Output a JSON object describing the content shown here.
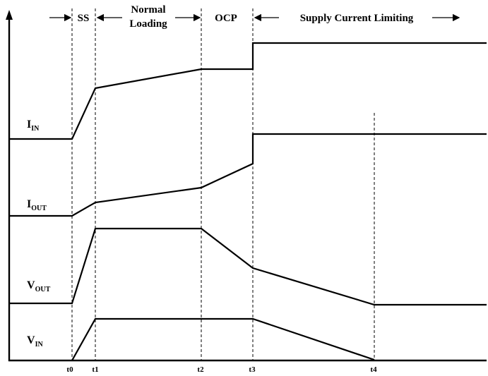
{
  "signals": [
    {
      "main": "I",
      "sub": "IN"
    },
    {
      "main": "I",
      "sub": "OUT"
    },
    {
      "main": "V",
      "sub": "OUT"
    },
    {
      "main": "V",
      "sub": "IN"
    }
  ],
  "phases": [
    {
      "label": "SS"
    },
    {
      "label_lines": [
        "Normal",
        "Loading"
      ]
    },
    {
      "label": "OCP"
    },
    {
      "label": "Supply Current Limiting"
    }
  ],
  "time_markers": [
    "t0",
    "t1",
    "t2",
    "t3",
    "t4"
  ]
}
